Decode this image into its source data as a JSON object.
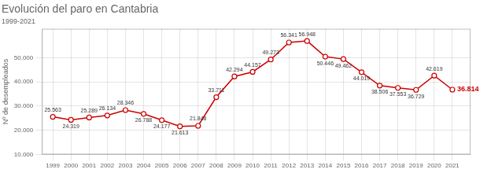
{
  "chart_data": {
    "type": "line",
    "title": "Evolución del paro en Cantabria",
    "subtitle": "1999-2021",
    "ylabel": "Nº de desempleados",
    "x": [
      1999,
      2000,
      2001,
      2002,
      2003,
      2004,
      2005,
      2006,
      2007,
      2008,
      2009,
      2010,
      2011,
      2012,
      2013,
      2014,
      2015,
      2016,
      2017,
      2018,
      2019,
      2020,
      2021
    ],
    "values": [
      25563,
      24319,
      25289,
      26134,
      28346,
      26788,
      24177,
      21613,
      21848,
      33711,
      42294,
      44157,
      49273,
      56341,
      56948,
      50446,
      49462,
      44019,
      38506,
      37553,
      36729,
      42619,
      36814
    ],
    "value_labels": [
      "25.563",
      "24.319",
      "25.289",
      "26.134",
      "28.346",
      "26.788",
      "24.177",
      "21.613",
      "21.848",
      "33.711",
      "42.294",
      "44.157",
      "49.273",
      "56.341",
      "56.948",
      "50.446",
      "49.462",
      "44.019",
      "38.506",
      "37.553",
      "36.729",
      "42.619",
      "36.814"
    ],
    "color": "#cc0000",
    "marker": "circle",
    "xlim": [
      1998.4,
      2022.0
    ],
    "xticks": [
      1999,
      2000,
      2001,
      2002,
      2003,
      2004,
      2005,
      2006,
      2007,
      2008,
      2009,
      2010,
      2011,
      2012,
      2013,
      2014,
      2015,
      2016,
      2017,
      2018,
      2019,
      2020,
      2021
    ],
    "ylim": [
      10000,
      62000
    ],
    "yticks": [
      {
        "value": 10000,
        "label": "10.000"
      },
      {
        "value": 20000,
        "label": "20.000"
      },
      {
        "value": 30000,
        "label": "30.000"
      },
      {
        "value": 40000,
        "label": "40.000"
      },
      {
        "value": 50000,
        "label": "50.000"
      }
    ],
    "grid": true,
    "data_labels": true
  }
}
